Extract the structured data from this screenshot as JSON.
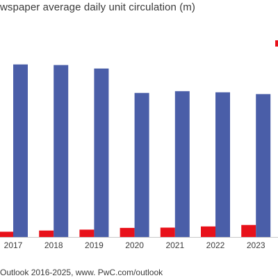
{
  "chart_data": {
    "type": "bar",
    "title": "wspaper average daily unit circulation (m)",
    "source": "Outlook 2016-2025, www. PwC.com/outlook",
    "categories": [
      "2017",
      "2018",
      "2019",
      "2020",
      "2021",
      "2022",
      "2023"
    ],
    "series": [
      {
        "color": "#e8111a",
        "values": [
          0.18,
          0.22,
          0.25,
          0.31,
          0.32,
          0.36,
          0.41
        ]
      },
      {
        "color": "#4a5ea8",
        "values": [
          5.88,
          5.86,
          5.74,
          4.91,
          4.97,
          4.93,
          4.87
        ]
      }
    ],
    "ylim": [
      0,
      6.3
    ],
    "grid": false,
    "legend": "top-right"
  }
}
